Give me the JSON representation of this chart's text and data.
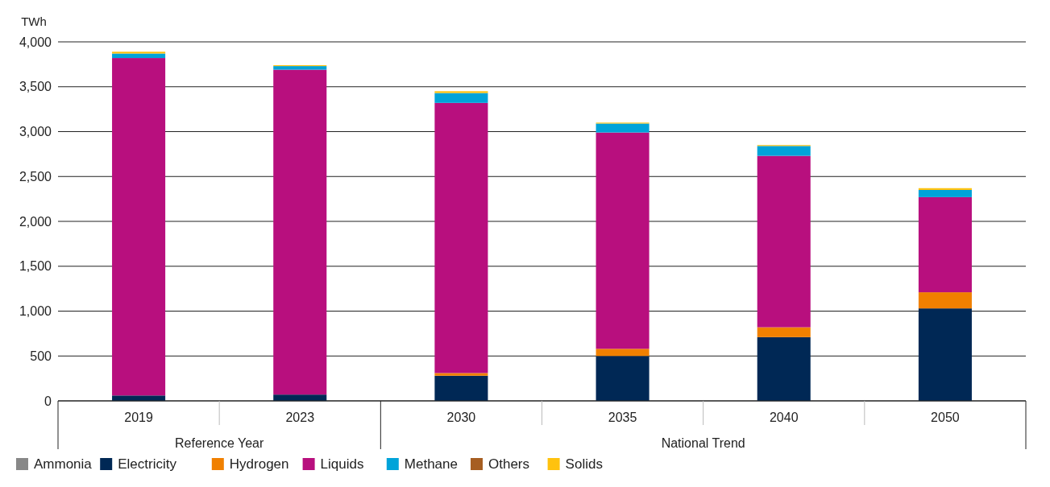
{
  "chart_data": {
    "type": "bar",
    "stacked": true,
    "ylabel": "TWh",
    "categories": [
      "2019",
      "2023",
      "2030",
      "2035",
      "2040",
      "2050"
    ],
    "ylim": [
      0,
      4000
    ],
    "yticks": [
      0,
      {
        "value": 500,
        "label": "500"
      },
      {
        "value": 1000,
        "label": "1,000"
      },
      {
        "value": 1500,
        "label": "1,500"
      },
      {
        "value": 2000,
        "label": "2,000"
      },
      {
        "value": 2500,
        "label": "2,500"
      },
      {
        "value": 3000,
        "label": "3,000"
      },
      {
        "value": 3500,
        "label": "3,500"
      },
      {
        "value": 4000,
        "label": "4,000"
      }
    ],
    "grid": "y",
    "legend": "bottom",
    "annotations": [
      "Reference Year",
      "National Trend"
    ],
    "series": [
      {
        "name": "Ammonia",
        "color": "#888888",
        "values": [
          0,
          0,
          0,
          0,
          0,
          0
        ]
      },
      {
        "name": "Electricity",
        "color": "#002855",
        "values": [
          60,
          70,
          280,
          500,
          710,
          1030
        ]
      },
      {
        "name": "Hydrogen",
        "color": "#f08000",
        "values": [
          0,
          0,
          30,
          80,
          110,
          180
        ]
      },
      {
        "name": "Liquids",
        "color": "#b80f7e",
        "values": [
          3760,
          3620,
          3010,
          2410,
          1910,
          1060
        ]
      },
      {
        "name": "Methane",
        "color": "#00a3d9",
        "values": [
          50,
          40,
          110,
          100,
          110,
          80
        ]
      },
      {
        "name": "Others",
        "color": "#a65e22",
        "values": [
          0,
          0,
          0,
          0,
          0,
          0
        ]
      },
      {
        "name": "Solids",
        "color": "#ffc20e",
        "values": [
          20,
          10,
          20,
          10,
          10,
          20
        ]
      }
    ]
  }
}
